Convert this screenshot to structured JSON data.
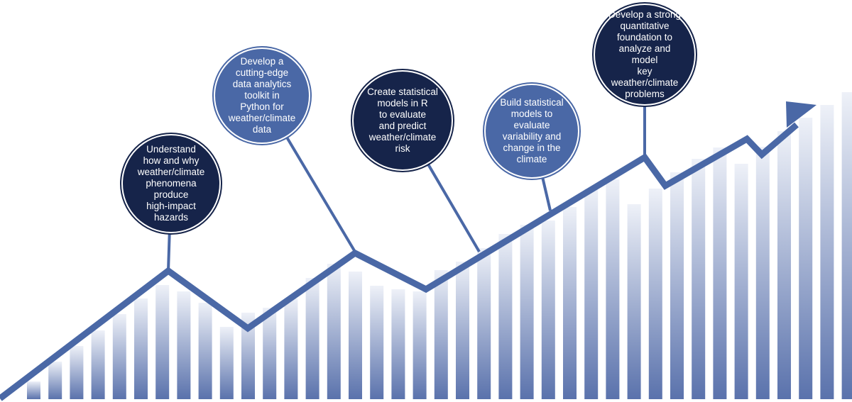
{
  "colors": {
    "line": "#4a68a6",
    "bar_top": "#eef1f8",
    "bar_bottom": "#5a72ac",
    "dark_circle": "#16244a",
    "mid_circle": "#4a68a6"
  },
  "milestones": [
    {
      "text": "Understand\nhow and why\nweather/climate\nphenomena\nproduce\nhigh-impact\nhazards",
      "style": "dark"
    },
    {
      "text": "Develop a\ncutting-edge\ndata analytics\ntoolkit in\nPython for\nweather/climate\ndata",
      "style": "mid"
    },
    {
      "text": "Create statistical\nmodels in R\nto evaluate\nand predict\nweather/climate\nrisk",
      "style": "dark"
    },
    {
      "text": "Build statistical\nmodels to evaluate\nvariability and\nchange in the\nclimate",
      "style": "mid"
    },
    {
      "text": "Develop a strong\nquantitative\nfoundation to\nanalyze and model\nkey weather/climate\nproblems",
      "style": "dark"
    }
  ]
}
